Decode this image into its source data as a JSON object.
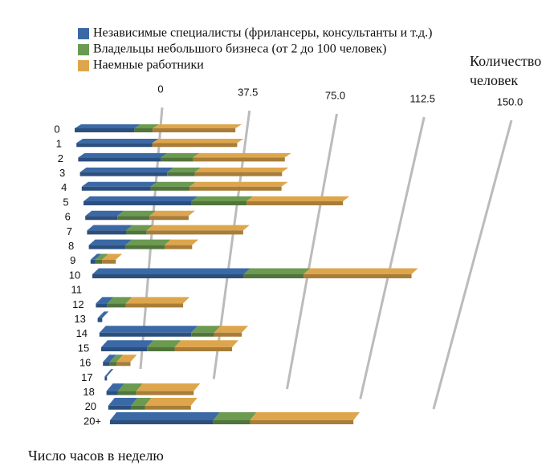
{
  "chart_data": {
    "type": "bar3d",
    "x_label": "Количество человек",
    "y_label": "Число часов в неделю",
    "categories": [
      "0",
      "1",
      "2",
      "3",
      "4",
      "5",
      "6",
      "7",
      "8",
      "9",
      "10",
      "11",
      "12",
      "13",
      "14",
      "15",
      "16",
      "17",
      "18",
      "20",
      "20+"
    ],
    "series": [
      {
        "name": "Независимые специалисты (фрилансеры, консультанты и т.д.)",
        "color": "#3b69a6",
        "values": [
          26,
          33,
          36,
          38,
          30,
          47,
          14,
          17,
          16,
          2,
          66,
          0,
          5,
          2,
          40,
          20,
          3,
          1,
          5,
          10,
          45
        ]
      },
      {
        "name": "Владельцы небольшого бизнеса (от 2 до 100 человек)",
        "color": "#6b9a50",
        "values": [
          8,
          0,
          14,
          12,
          17,
          24,
          14,
          9,
          17,
          3,
          26,
          0,
          8,
          0,
          10,
          12,
          3,
          0,
          8,
          6,
          16
        ]
      },
      {
        "name": "Наемные работники",
        "color": "#dea64c",
        "values": [
          36,
          37,
          40,
          38,
          40,
          42,
          17,
          42,
          12,
          6,
          47,
          0,
          25,
          0,
          12,
          25,
          6,
          0,
          25,
          20,
          45
        ]
      }
    ],
    "xlim": [
      0,
      150
    ],
    "xticks": [
      0,
      37.5,
      {
        "value": 75,
        "label": "75.0"
      },
      112.5,
      {
        "value": 150,
        "label": "150.0"
      }
    ],
    "stacked": true
  }
}
